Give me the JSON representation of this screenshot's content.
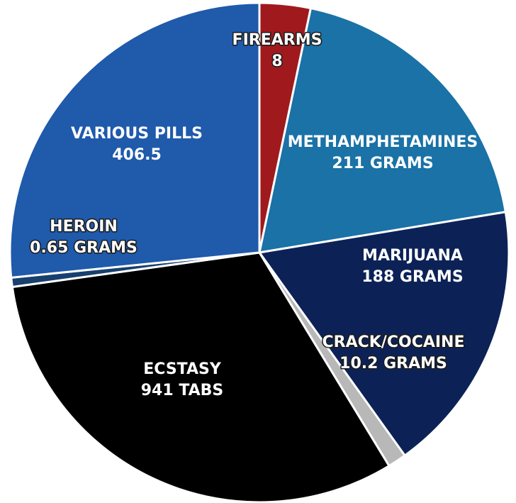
{
  "chart_data": {
    "type": "pie",
    "slices": [
      {
        "label": "FIREARMS",
        "value_label": "8",
        "share": 0.033,
        "color": "#a01a1d"
      },
      {
        "label": "METHAMPHETAMINES",
        "value_label": "211 GRAMS",
        "share": 0.191,
        "color": "#1a72a6"
      },
      {
        "label": "MARIJUANA",
        "value_label": "188 GRAMS",
        "share": 0.177,
        "color": "#0c2257"
      },
      {
        "label": "CRACK/COCAINE",
        "value_label": "10.2 GRAMS",
        "share": 0.012,
        "color": "#b8b8b8"
      },
      {
        "label": "ECSTASY",
        "value_label": "941 TABS",
        "share": 0.315,
        "color": "#000000"
      },
      {
        "label": "HEROIN",
        "value_label": "0.65 GRAMS",
        "share": 0.006,
        "color": "#18406e"
      },
      {
        "label": "VARIOUS PILLS",
        "value_label": "406.5",
        "share": 0.266,
        "color": "#1f5aab"
      }
    ]
  }
}
